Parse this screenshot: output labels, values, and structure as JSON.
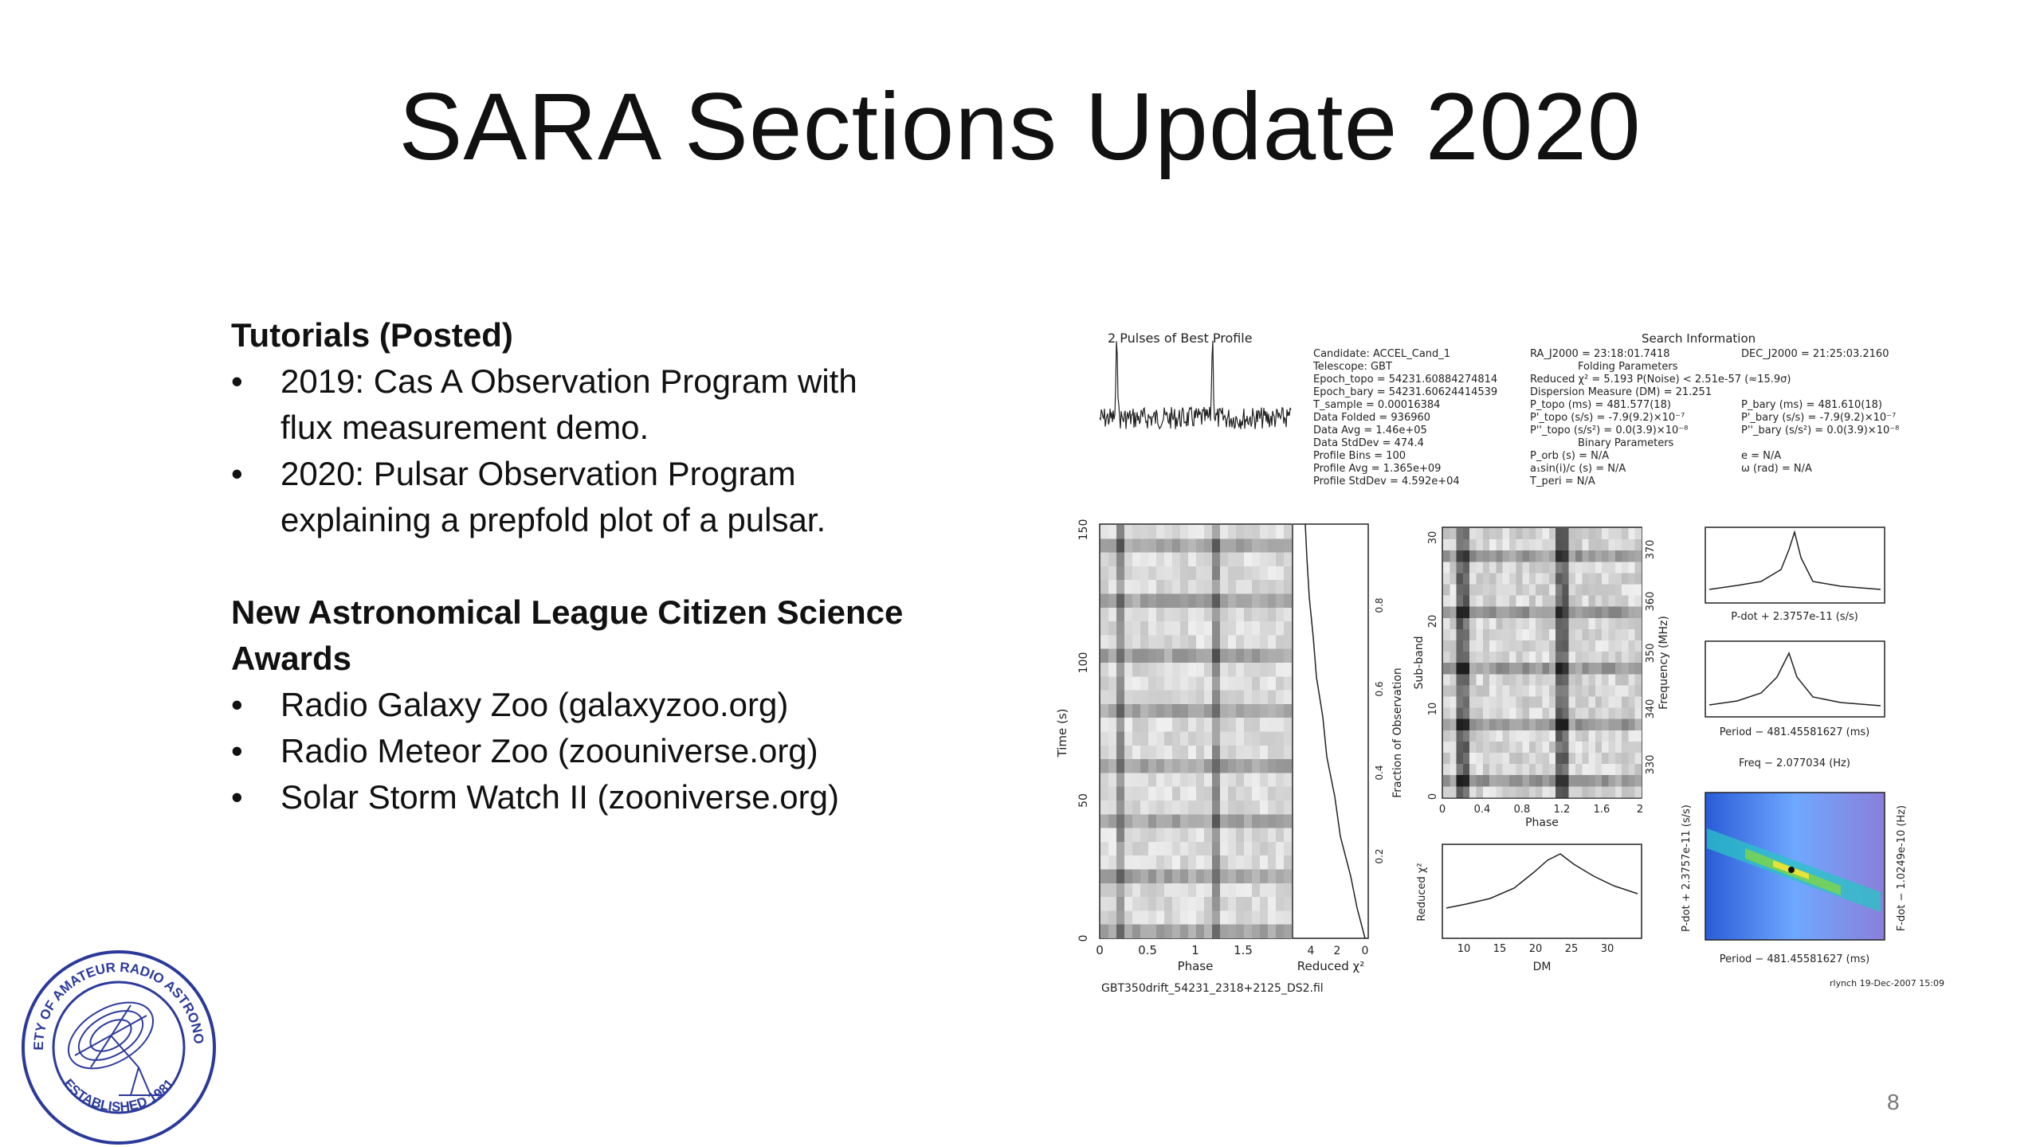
{
  "slide": {
    "title": "SARA Sections Update 2020",
    "page_number": "8",
    "sections": [
      {
        "heading": "Tutorials (Posted)",
        "items": [
          {
            "bullet": "•",
            "lines": [
              "2019: Cas A Observation Program with",
              "flux measurement demo."
            ]
          },
          {
            "bullet": "•",
            "lines": [
              "2020: Pulsar Observation Program",
              "explaining a prepfold plot of a pulsar."
            ]
          }
        ]
      },
      {
        "heading": [
          "New Astronomical League Citizen Science",
          "Awards"
        ],
        "items": [
          {
            "bullet": "•",
            "lines": [
              "Radio Galaxy Zoo (galaxyzoo.org)"
            ]
          },
          {
            "bullet": "•",
            "lines": [
              "Radio Meteor Zoo (zoouniverse.org)"
            ]
          },
          {
            "bullet": "•",
            "lines": [
              "Solar Storm Watch II (zooniverse.org)"
            ]
          }
        ]
      }
    ]
  },
  "logo": {
    "top_text": "SOCIETY OF AMATEUR RADIO ASTRONOMERS",
    "bottom_text": "ESTABLISHED 1981",
    "color": "#2b3a9a"
  },
  "plot": {
    "profile_title": "2 Pulses of Best Profile",
    "info_left": [
      "Candidate:   ACCEL_Cand_1",
      "Telescope:   GBT",
      "Epoch_topo  = 54231.60884274814",
      "Epoch_bary  = 54231.60624414539",
      "T_sample    = 0.00016384",
      "Data Folded = 936960",
      "Data Avg    = 1.46e+05",
      "Data StdDev = 474.4",
      "Profile Bins = 100",
      "Profile Avg  = 1.365e+09",
      "Profile StdDev = 4.592e+04"
    ],
    "info_mid": [
      "RA_J2000 = 23:18:01.7418",
      "Folding Parameters",
      "Reduced χ² = 5.193   P(Noise) < 2.51e-57   (≈15.9σ)",
      "Dispersion Measure (DM) = 21.251",
      "P_topo (ms) = 481.577(18)",
      "P'_topo (s/s) = -7.9(9.2)×10⁻⁷",
      "P''_topo (s/s²) = 0.0(3.9)×10⁻⁸",
      "Binary Parameters",
      "P_orb (s) = N/A",
      "a₁sin(i)/c (s) = N/A",
      "T_peri = N/A"
    ],
    "info_right": [
      "DEC_J2000 = 21:25:03.2160",
      "",
      "",
      "",
      "P_bary (ms) = 481.610(18)",
      "P'_bary (s/s) = -7.9(9.2)×10⁻⁷",
      "P''_bary (s/s²) = 0.0(3.9)×10⁻⁸",
      "",
      "e = N/A",
      "ω (rad) = N/A",
      ""
    ],
    "search_info": "Search Information",
    "time_axis": {
      "label": "Time (s)",
      "ticks": [
        "0",
        "50",
        "100",
        "150"
      ]
    },
    "phase_axis": {
      "label": "Phase",
      "ticks": [
        "0",
        "0.5",
        "1",
        "1.5"
      ]
    },
    "chi_axis": {
      "label": "Reduced χ²",
      "ticks": [
        "4",
        "2",
        "0"
      ]
    },
    "fraction_axis": {
      "label": "Fraction of Observation",
      "ticks": [
        "0.2",
        "0.4",
        "0.6",
        "0.8"
      ]
    },
    "subband_axis": {
      "label": "Sub-band",
      "ticks": [
        "0",
        "10",
        "20",
        "30"
      ]
    },
    "freq_axis": {
      "label": "Frequency (MHz)",
      "ticks": [
        "330",
        "340",
        "350",
        "360",
        "370"
      ]
    },
    "phase2_axis": {
      "label": "Phase",
      "ticks": [
        "0",
        "0.4",
        "0.8",
        "1.2",
        "1.6",
        "2"
      ]
    },
    "dm_axis": {
      "label": "DM",
      "ticks": [
        "10",
        "15",
        "20",
        "25",
        "30"
      ]
    },
    "dm_chi_label": "Reduced χ²",
    "pdot_label": "P-dot + 2.3757e-11 (s/s)",
    "period_label": "Period − 481.45581627 (ms)",
    "period_label2": "Period − 481.45581627 (ms)",
    "freq_label": "Freq − 2.077034 (Hz)",
    "fdot_label": "F-dot − 1.0249e-10 (Hz)",
    "pdot_axis_label": "P-dot + 2.3757e-11 (s/s)",
    "filename": "GBT350drift_54231_2318+2125_DS2.fil",
    "signature": "rlynch  19-Dec-2007 15:09"
  }
}
